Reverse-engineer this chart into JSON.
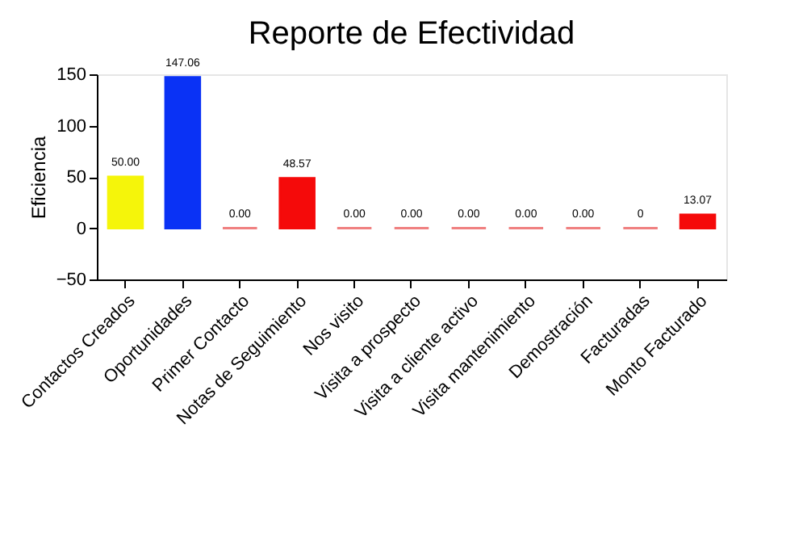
{
  "chart_data": {
    "type": "bar",
    "title": "Reporte de Efectividad",
    "ylabel": "Eficiencia",
    "categories": [
      "Contactos Creados",
      "Oportunidades",
      "Primer Contacto",
      "Notas de Seguimiento",
      "Nos visito",
      "Visita a prospecto",
      "Visita a cliente activo",
      "Visita mantenimiento",
      "Demostración",
      "Facturadas",
      "Monto Facturado"
    ],
    "values": [
      50,
      147.06,
      0,
      48.57,
      0,
      0,
      0,
      0,
      0,
      0,
      13.07
    ],
    "colors": [
      "#f5f50a",
      "#0a32f5",
      "#f08080",
      "#f50a0a",
      "#f08080",
      "#f08080",
      "#f08080",
      "#f08080",
      "#f08080",
      "#f08080",
      "#f50a0a"
    ],
    "value_labels": [
      "50.00",
      "147.06",
      "0.00",
      "48.57",
      "0.00",
      "0.00",
      "0.00",
      "0.00",
      "0.00",
      "0",
      "13.07"
    ],
    "ylim": [
      -50,
      150
    ],
    "yticks": [
      -50,
      0,
      50,
      100,
      150
    ],
    "grid": false
  }
}
